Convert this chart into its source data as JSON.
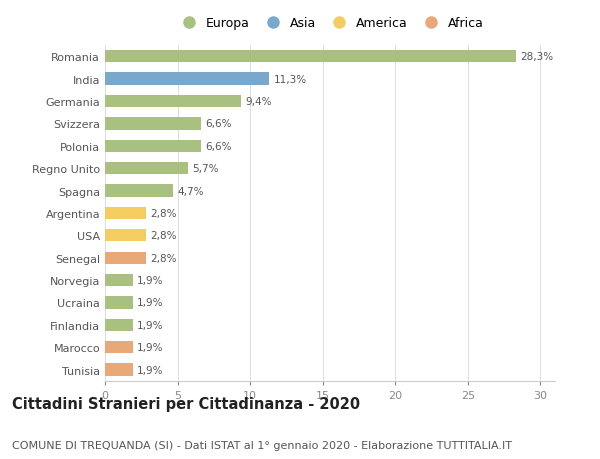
{
  "categories": [
    "Romania",
    "India",
    "Germania",
    "Svizzera",
    "Polonia",
    "Regno Unito",
    "Spagna",
    "Argentina",
    "USA",
    "Senegal",
    "Norvegia",
    "Ucraina",
    "Finlandia",
    "Marocco",
    "Tunisia"
  ],
  "values": [
    28.3,
    11.3,
    9.4,
    6.6,
    6.6,
    5.7,
    4.7,
    2.8,
    2.8,
    2.8,
    1.9,
    1.9,
    1.9,
    1.9,
    1.9
  ],
  "labels": [
    "28,3%",
    "11,3%",
    "9,4%",
    "6,6%",
    "6,6%",
    "5,7%",
    "4,7%",
    "2,8%",
    "2,8%",
    "2,8%",
    "1,9%",
    "1,9%",
    "1,9%",
    "1,9%",
    "1,9%"
  ],
  "continent": [
    "Europa",
    "Asia",
    "Europa",
    "Europa",
    "Europa",
    "Europa",
    "Europa",
    "America",
    "America",
    "Africa",
    "Europa",
    "Europa",
    "Europa",
    "Africa",
    "Africa"
  ],
  "colors": {
    "Europa": "#a8c080",
    "Asia": "#7aa8cc",
    "America": "#f5cc60",
    "Africa": "#e8a878"
  },
  "legend_order": [
    "Europa",
    "Asia",
    "America",
    "Africa"
  ],
  "xlim": [
    0,
    31
  ],
  "xticks": [
    0,
    5,
    10,
    15,
    20,
    25,
    30
  ],
  "title": "Cittadini Stranieri per Cittadinanza - 2020",
  "subtitle": "COMUNE DI TREQUANDA (SI) - Dati ISTAT al 1° gennaio 2020 - Elaborazione TUTTITALIA.IT",
  "background_color": "#ffffff",
  "bar_height": 0.55,
  "title_fontsize": 10.5,
  "subtitle_fontsize": 8,
  "label_fontsize": 7.5,
  "tick_fontsize": 8,
  "legend_fontsize": 9
}
